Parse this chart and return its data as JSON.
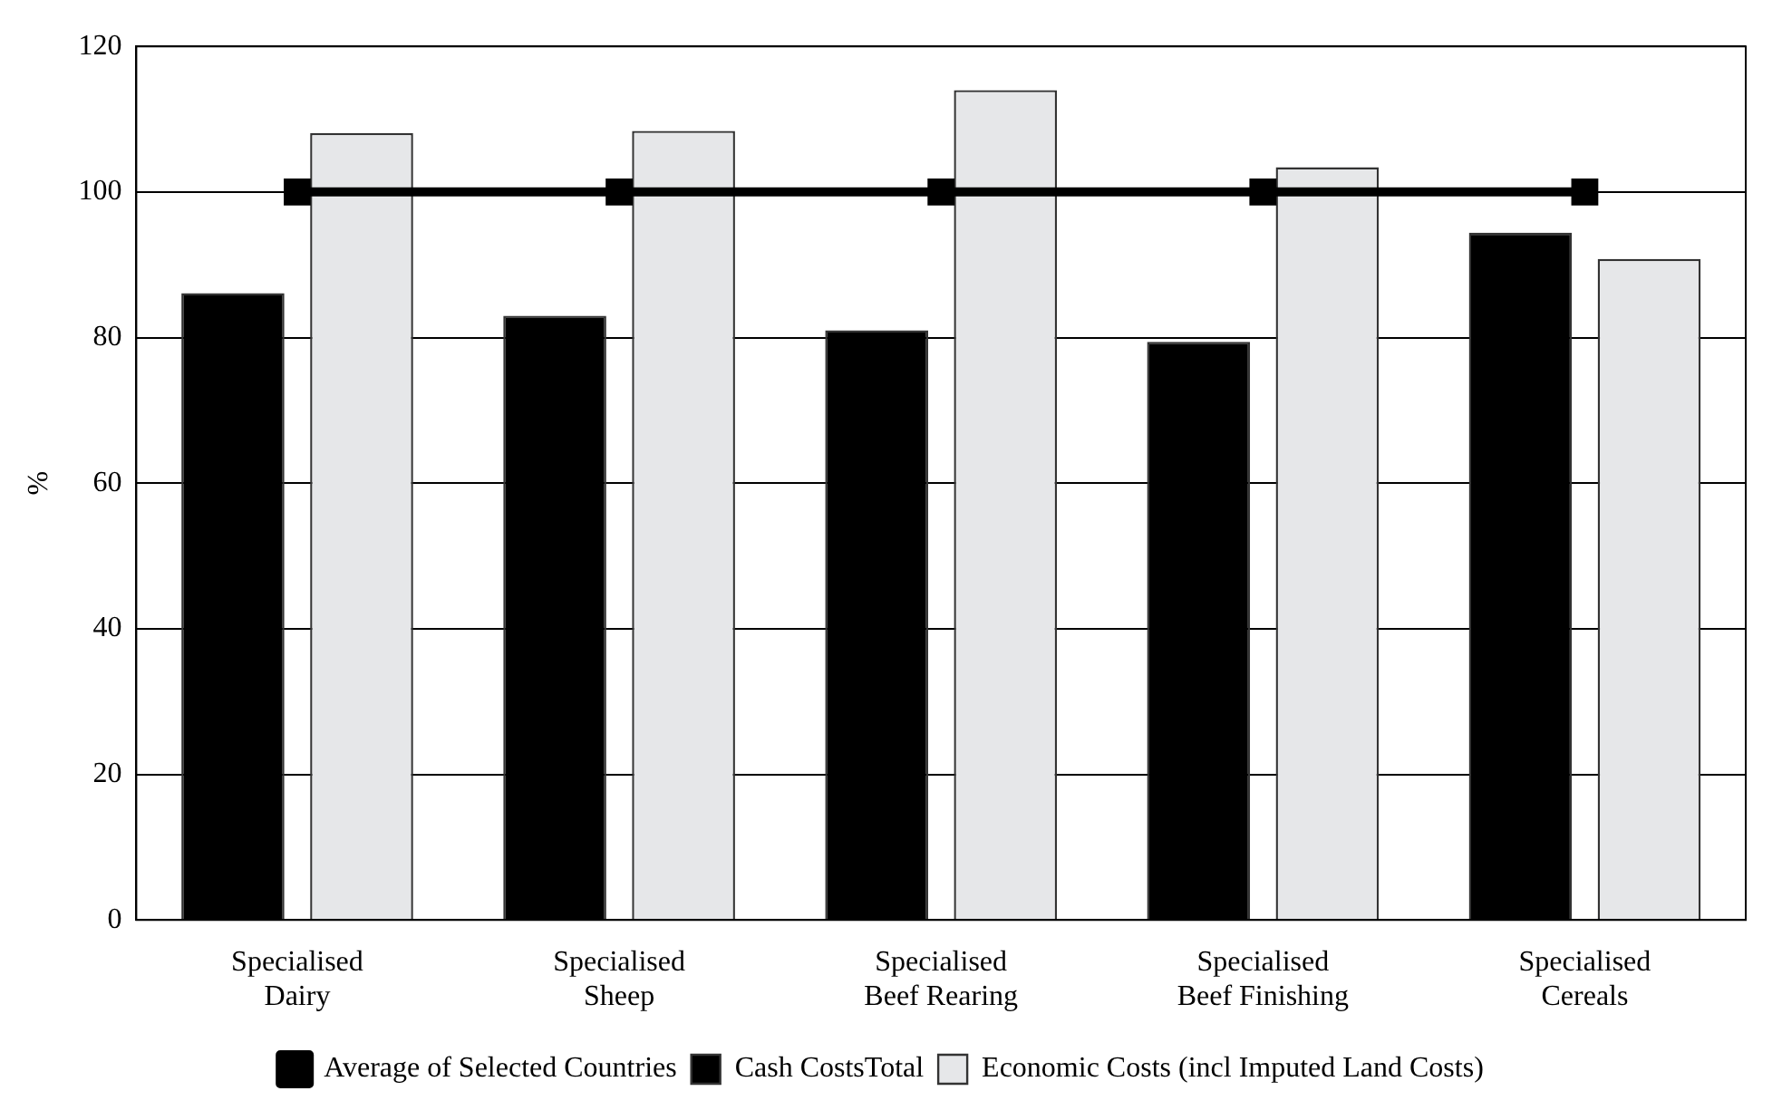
{
  "chart_data": {
    "type": "bar",
    "ylabel": "%",
    "categories": [
      "Specialised Dairy",
      "Specialised Sheep",
      "Specialised Beef Rearing",
      "Specialised Beef Finishing",
      "Specialised Cereals"
    ],
    "series": [
      {
        "name": "Cash CostsTotal",
        "color": "#000000",
        "values": [
          86.1,
          83.0,
          81.0,
          79.4,
          94.4
        ]
      },
      {
        "name": "Economic Costs (incl Imputed Land Costs)",
        "color": "#e6e7e9",
        "values": [
          108.1,
          108.4,
          114.0,
          103.4,
          90.8
        ]
      },
      {
        "name": "Average of Selected Countries",
        "type": "line",
        "color": "#000000",
        "marker": "square",
        "values": [
          100,
          100,
          100,
          100,
          100
        ]
      }
    ],
    "ylim": [
      0,
      120
    ],
    "yticks": [
      0,
      20,
      40,
      60,
      80,
      100,
      120
    ],
    "grid": "y",
    "legend": "bottom"
  }
}
